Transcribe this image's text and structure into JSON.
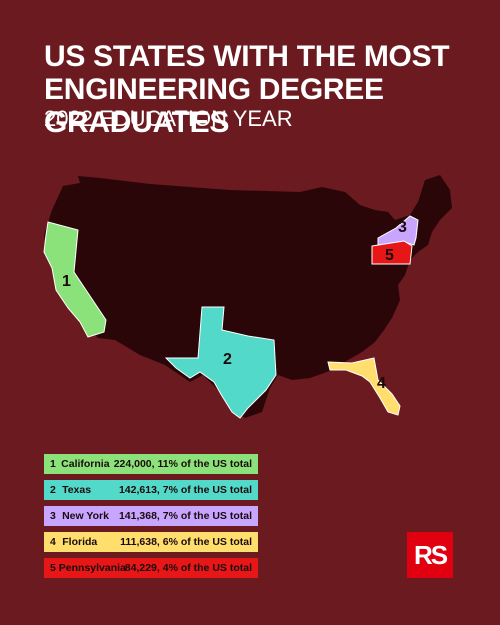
{
  "title": {
    "line1": "US STATES WITH THE MOST",
    "line2": "ENGINEERING DEGREE GRADUATES"
  },
  "subtitle": "2022 EDUCATION YEAR",
  "colors": {
    "background": "#6b1a1f",
    "us_landmass": "#2a0609",
    "logo_red": "#e1000f"
  },
  "states": [
    {
      "rank": "1",
      "name": "California",
      "value": "224,000, 11% of the US total",
      "color": "#8be27a"
    },
    {
      "rank": "2",
      "name": "Texas",
      "value": "142,613, 7% of the US total",
      "color": "#52d9c9"
    },
    {
      "rank": "3",
      "name": "New York",
      "value": "141,368, 7% of the US total",
      "color": "#c8a6ff"
    },
    {
      "rank": "4",
      "name": "Florida",
      "value": "111,638, 6% of the US total",
      "color": "#ffde6e"
    },
    {
      "rank": "5",
      "name": "Pennsylvania",
      "value": "84,229, 4% of the US total",
      "color": "#e81717"
    }
  ],
  "logo": {
    "text": "RS",
    "icon": "rs-logo"
  }
}
